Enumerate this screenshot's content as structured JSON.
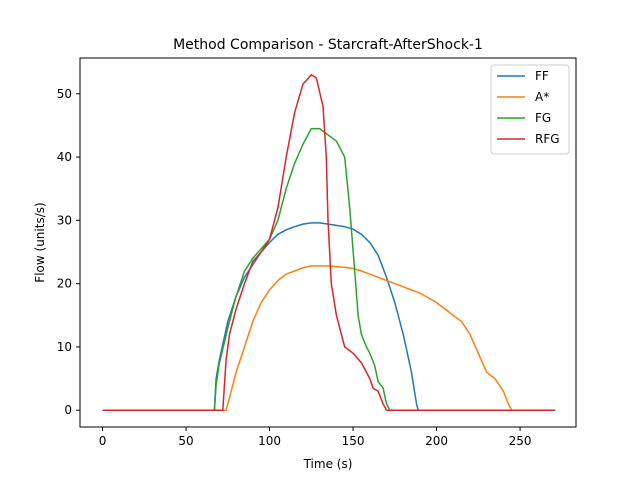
{
  "chart_data": {
    "type": "line",
    "title": "Method Comparison - Starcraft-AfterShock-1",
    "xlabel": "Time (s)",
    "ylabel": "Flow (units/s)",
    "xlim": [
      -13.5,
      283.5
    ],
    "ylim": [
      -2.65,
      55.65
    ],
    "xticks": [
      0,
      50,
      100,
      150,
      200,
      250
    ],
    "yticks": [
      0,
      10,
      20,
      30,
      40,
      50
    ],
    "grid": false,
    "legend_position": "top-right",
    "series": [
      {
        "name": "FF",
        "color": "#1f77b4",
        "points": [
          [
            0,
            0
          ],
          [
            67,
            0
          ],
          [
            68,
            5
          ],
          [
            70,
            8
          ],
          [
            75,
            14
          ],
          [
            80,
            18
          ],
          [
            85,
            21
          ],
          [
            90,
            23
          ],
          [
            95,
            25
          ],
          [
            100,
            26.5
          ],
          [
            105,
            27.8
          ],
          [
            110,
            28.5
          ],
          [
            115,
            29
          ],
          [
            120,
            29.4
          ],
          [
            125,
            29.6
          ],
          [
            130,
            29.6
          ],
          [
            135,
            29.4
          ],
          [
            140,
            29.2
          ],
          [
            145,
            29
          ],
          [
            150,
            28.6
          ],
          [
            155,
            27.8
          ],
          [
            160,
            26.5
          ],
          [
            165,
            24.5
          ],
          [
            170,
            21
          ],
          [
            175,
            17
          ],
          [
            180,
            12
          ],
          [
            185,
            6
          ],
          [
            188,
            1
          ],
          [
            189,
            0
          ],
          [
            271,
            0
          ]
        ]
      },
      {
        "name": "A*",
        "color": "#ff7f0e",
        "points": [
          [
            0,
            0
          ],
          [
            74,
            0
          ],
          [
            76,
            2
          ],
          [
            80,
            6
          ],
          [
            85,
            10
          ],
          [
            90,
            14
          ],
          [
            95,
            17
          ],
          [
            100,
            19
          ],
          [
            105,
            20.5
          ],
          [
            110,
            21.5
          ],
          [
            115,
            22
          ],
          [
            120,
            22.5
          ],
          [
            125,
            22.8
          ],
          [
            130,
            22.8
          ],
          [
            135,
            22.8
          ],
          [
            140,
            22.7
          ],
          [
            145,
            22.6
          ],
          [
            150,
            22.4
          ],
          [
            155,
            22
          ],
          [
            160,
            21.5
          ],
          [
            165,
            21
          ],
          [
            170,
            20.5
          ],
          [
            175,
            20
          ],
          [
            180,
            19.5
          ],
          [
            185,
            19
          ],
          [
            190,
            18.5
          ],
          [
            195,
            17.8
          ],
          [
            200,
            17
          ],
          [
            205,
            16
          ],
          [
            210,
            15
          ],
          [
            215,
            14
          ],
          [
            220,
            12
          ],
          [
            225,
            9
          ],
          [
            230,
            6
          ],
          [
            235,
            5
          ],
          [
            240,
            3
          ],
          [
            243,
            1
          ],
          [
            245,
            0
          ],
          [
            271,
            0
          ]
        ]
      },
      {
        "name": "FG",
        "color": "#2ca02c",
        "points": [
          [
            0,
            0
          ],
          [
            67,
            0
          ],
          [
            68,
            4
          ],
          [
            70,
            7.5
          ],
          [
            75,
            13
          ],
          [
            80,
            18
          ],
          [
            85,
            22
          ],
          [
            90,
            24
          ],
          [
            95,
            25.5
          ],
          [
            100,
            27
          ],
          [
            105,
            30
          ],
          [
            110,
            35
          ],
          [
            115,
            39
          ],
          [
            120,
            42
          ],
          [
            125,
            44.5
          ],
          [
            130,
            44.5
          ],
          [
            135,
            43.5
          ],
          [
            140,
            42.5
          ],
          [
            145,
            40
          ],
          [
            148,
            32
          ],
          [
            151,
            22
          ],
          [
            153,
            15
          ],
          [
            155,
            12
          ],
          [
            158,
            10
          ],
          [
            160,
            9
          ],
          [
            163,
            7
          ],
          [
            165,
            4.5
          ],
          [
            168,
            3.5
          ],
          [
            170,
            1
          ],
          [
            172,
            0
          ],
          [
            271,
            0
          ]
        ]
      },
      {
        "name": "RFG",
        "color": "#d62728",
        "points": [
          [
            0,
            0
          ],
          [
            72,
            0
          ],
          [
            74,
            8
          ],
          [
            76,
            12
          ],
          [
            80,
            16
          ],
          [
            85,
            20
          ],
          [
            90,
            23.5
          ],
          [
            95,
            25
          ],
          [
            100,
            27
          ],
          [
            105,
            32
          ],
          [
            110,
            40
          ],
          [
            115,
            47
          ],
          [
            120,
            51.5
          ],
          [
            125,
            53
          ],
          [
            128,
            52.5
          ],
          [
            132,
            48
          ],
          [
            134,
            40
          ],
          [
            135,
            30
          ],
          [
            137,
            20
          ],
          [
            140,
            15
          ],
          [
            145,
            10
          ],
          [
            150,
            9
          ],
          [
            155,
            7.5
          ],
          [
            160,
            5
          ],
          [
            162,
            3.5
          ],
          [
            165,
            3
          ],
          [
            168,
            1
          ],
          [
            170,
            0
          ],
          [
            271,
            0
          ]
        ]
      }
    ]
  }
}
